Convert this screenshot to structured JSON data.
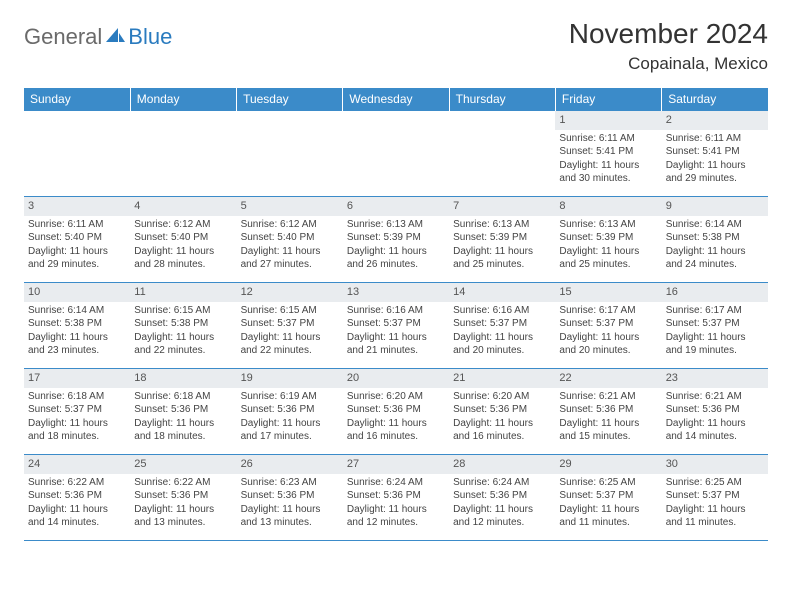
{
  "logo": {
    "t1": "General",
    "t2": "Blue",
    "icon_color": "#2a7bbf",
    "text_gray": "#6a6a6a"
  },
  "title": "November 2024",
  "location": "Copainala, Mexico",
  "colors": {
    "header_bg": "#3b8bc9",
    "daynum_bg": "#e9ecef",
    "border": "#3b8bc9"
  },
  "dow": [
    "Sunday",
    "Monday",
    "Tuesday",
    "Wednesday",
    "Thursday",
    "Friday",
    "Saturday"
  ],
  "weeks": [
    [
      {
        "n": "",
        "sr": "",
        "ss": "",
        "dl": ""
      },
      {
        "n": "",
        "sr": "",
        "ss": "",
        "dl": ""
      },
      {
        "n": "",
        "sr": "",
        "ss": "",
        "dl": ""
      },
      {
        "n": "",
        "sr": "",
        "ss": "",
        "dl": ""
      },
      {
        "n": "",
        "sr": "",
        "ss": "",
        "dl": ""
      },
      {
        "n": "1",
        "sr": "Sunrise: 6:11 AM",
        "ss": "Sunset: 5:41 PM",
        "dl": "Daylight: 11 hours and 30 minutes."
      },
      {
        "n": "2",
        "sr": "Sunrise: 6:11 AM",
        "ss": "Sunset: 5:41 PM",
        "dl": "Daylight: 11 hours and 29 minutes."
      }
    ],
    [
      {
        "n": "3",
        "sr": "Sunrise: 6:11 AM",
        "ss": "Sunset: 5:40 PM",
        "dl": "Daylight: 11 hours and 29 minutes."
      },
      {
        "n": "4",
        "sr": "Sunrise: 6:12 AM",
        "ss": "Sunset: 5:40 PM",
        "dl": "Daylight: 11 hours and 28 minutes."
      },
      {
        "n": "5",
        "sr": "Sunrise: 6:12 AM",
        "ss": "Sunset: 5:40 PM",
        "dl": "Daylight: 11 hours and 27 minutes."
      },
      {
        "n": "6",
        "sr": "Sunrise: 6:13 AM",
        "ss": "Sunset: 5:39 PM",
        "dl": "Daylight: 11 hours and 26 minutes."
      },
      {
        "n": "7",
        "sr": "Sunrise: 6:13 AM",
        "ss": "Sunset: 5:39 PM",
        "dl": "Daylight: 11 hours and 25 minutes."
      },
      {
        "n": "8",
        "sr": "Sunrise: 6:13 AM",
        "ss": "Sunset: 5:39 PM",
        "dl": "Daylight: 11 hours and 25 minutes."
      },
      {
        "n": "9",
        "sr": "Sunrise: 6:14 AM",
        "ss": "Sunset: 5:38 PM",
        "dl": "Daylight: 11 hours and 24 minutes."
      }
    ],
    [
      {
        "n": "10",
        "sr": "Sunrise: 6:14 AM",
        "ss": "Sunset: 5:38 PM",
        "dl": "Daylight: 11 hours and 23 minutes."
      },
      {
        "n": "11",
        "sr": "Sunrise: 6:15 AM",
        "ss": "Sunset: 5:38 PM",
        "dl": "Daylight: 11 hours and 22 minutes."
      },
      {
        "n": "12",
        "sr": "Sunrise: 6:15 AM",
        "ss": "Sunset: 5:37 PM",
        "dl": "Daylight: 11 hours and 22 minutes."
      },
      {
        "n": "13",
        "sr": "Sunrise: 6:16 AM",
        "ss": "Sunset: 5:37 PM",
        "dl": "Daylight: 11 hours and 21 minutes."
      },
      {
        "n": "14",
        "sr": "Sunrise: 6:16 AM",
        "ss": "Sunset: 5:37 PM",
        "dl": "Daylight: 11 hours and 20 minutes."
      },
      {
        "n": "15",
        "sr": "Sunrise: 6:17 AM",
        "ss": "Sunset: 5:37 PM",
        "dl": "Daylight: 11 hours and 20 minutes."
      },
      {
        "n": "16",
        "sr": "Sunrise: 6:17 AM",
        "ss": "Sunset: 5:37 PM",
        "dl": "Daylight: 11 hours and 19 minutes."
      }
    ],
    [
      {
        "n": "17",
        "sr": "Sunrise: 6:18 AM",
        "ss": "Sunset: 5:37 PM",
        "dl": "Daylight: 11 hours and 18 minutes."
      },
      {
        "n": "18",
        "sr": "Sunrise: 6:18 AM",
        "ss": "Sunset: 5:36 PM",
        "dl": "Daylight: 11 hours and 18 minutes."
      },
      {
        "n": "19",
        "sr": "Sunrise: 6:19 AM",
        "ss": "Sunset: 5:36 PM",
        "dl": "Daylight: 11 hours and 17 minutes."
      },
      {
        "n": "20",
        "sr": "Sunrise: 6:20 AM",
        "ss": "Sunset: 5:36 PM",
        "dl": "Daylight: 11 hours and 16 minutes."
      },
      {
        "n": "21",
        "sr": "Sunrise: 6:20 AM",
        "ss": "Sunset: 5:36 PM",
        "dl": "Daylight: 11 hours and 16 minutes."
      },
      {
        "n": "22",
        "sr": "Sunrise: 6:21 AM",
        "ss": "Sunset: 5:36 PM",
        "dl": "Daylight: 11 hours and 15 minutes."
      },
      {
        "n": "23",
        "sr": "Sunrise: 6:21 AM",
        "ss": "Sunset: 5:36 PM",
        "dl": "Daylight: 11 hours and 14 minutes."
      }
    ],
    [
      {
        "n": "24",
        "sr": "Sunrise: 6:22 AM",
        "ss": "Sunset: 5:36 PM",
        "dl": "Daylight: 11 hours and 14 minutes."
      },
      {
        "n": "25",
        "sr": "Sunrise: 6:22 AM",
        "ss": "Sunset: 5:36 PM",
        "dl": "Daylight: 11 hours and 13 minutes."
      },
      {
        "n": "26",
        "sr": "Sunrise: 6:23 AM",
        "ss": "Sunset: 5:36 PM",
        "dl": "Daylight: 11 hours and 13 minutes."
      },
      {
        "n": "27",
        "sr": "Sunrise: 6:24 AM",
        "ss": "Sunset: 5:36 PM",
        "dl": "Daylight: 11 hours and 12 minutes."
      },
      {
        "n": "28",
        "sr": "Sunrise: 6:24 AM",
        "ss": "Sunset: 5:36 PM",
        "dl": "Daylight: 11 hours and 12 minutes."
      },
      {
        "n": "29",
        "sr": "Sunrise: 6:25 AM",
        "ss": "Sunset: 5:37 PM",
        "dl": "Daylight: 11 hours and 11 minutes."
      },
      {
        "n": "30",
        "sr": "Sunrise: 6:25 AM",
        "ss": "Sunset: 5:37 PM",
        "dl": "Daylight: 11 hours and 11 minutes."
      }
    ]
  ]
}
